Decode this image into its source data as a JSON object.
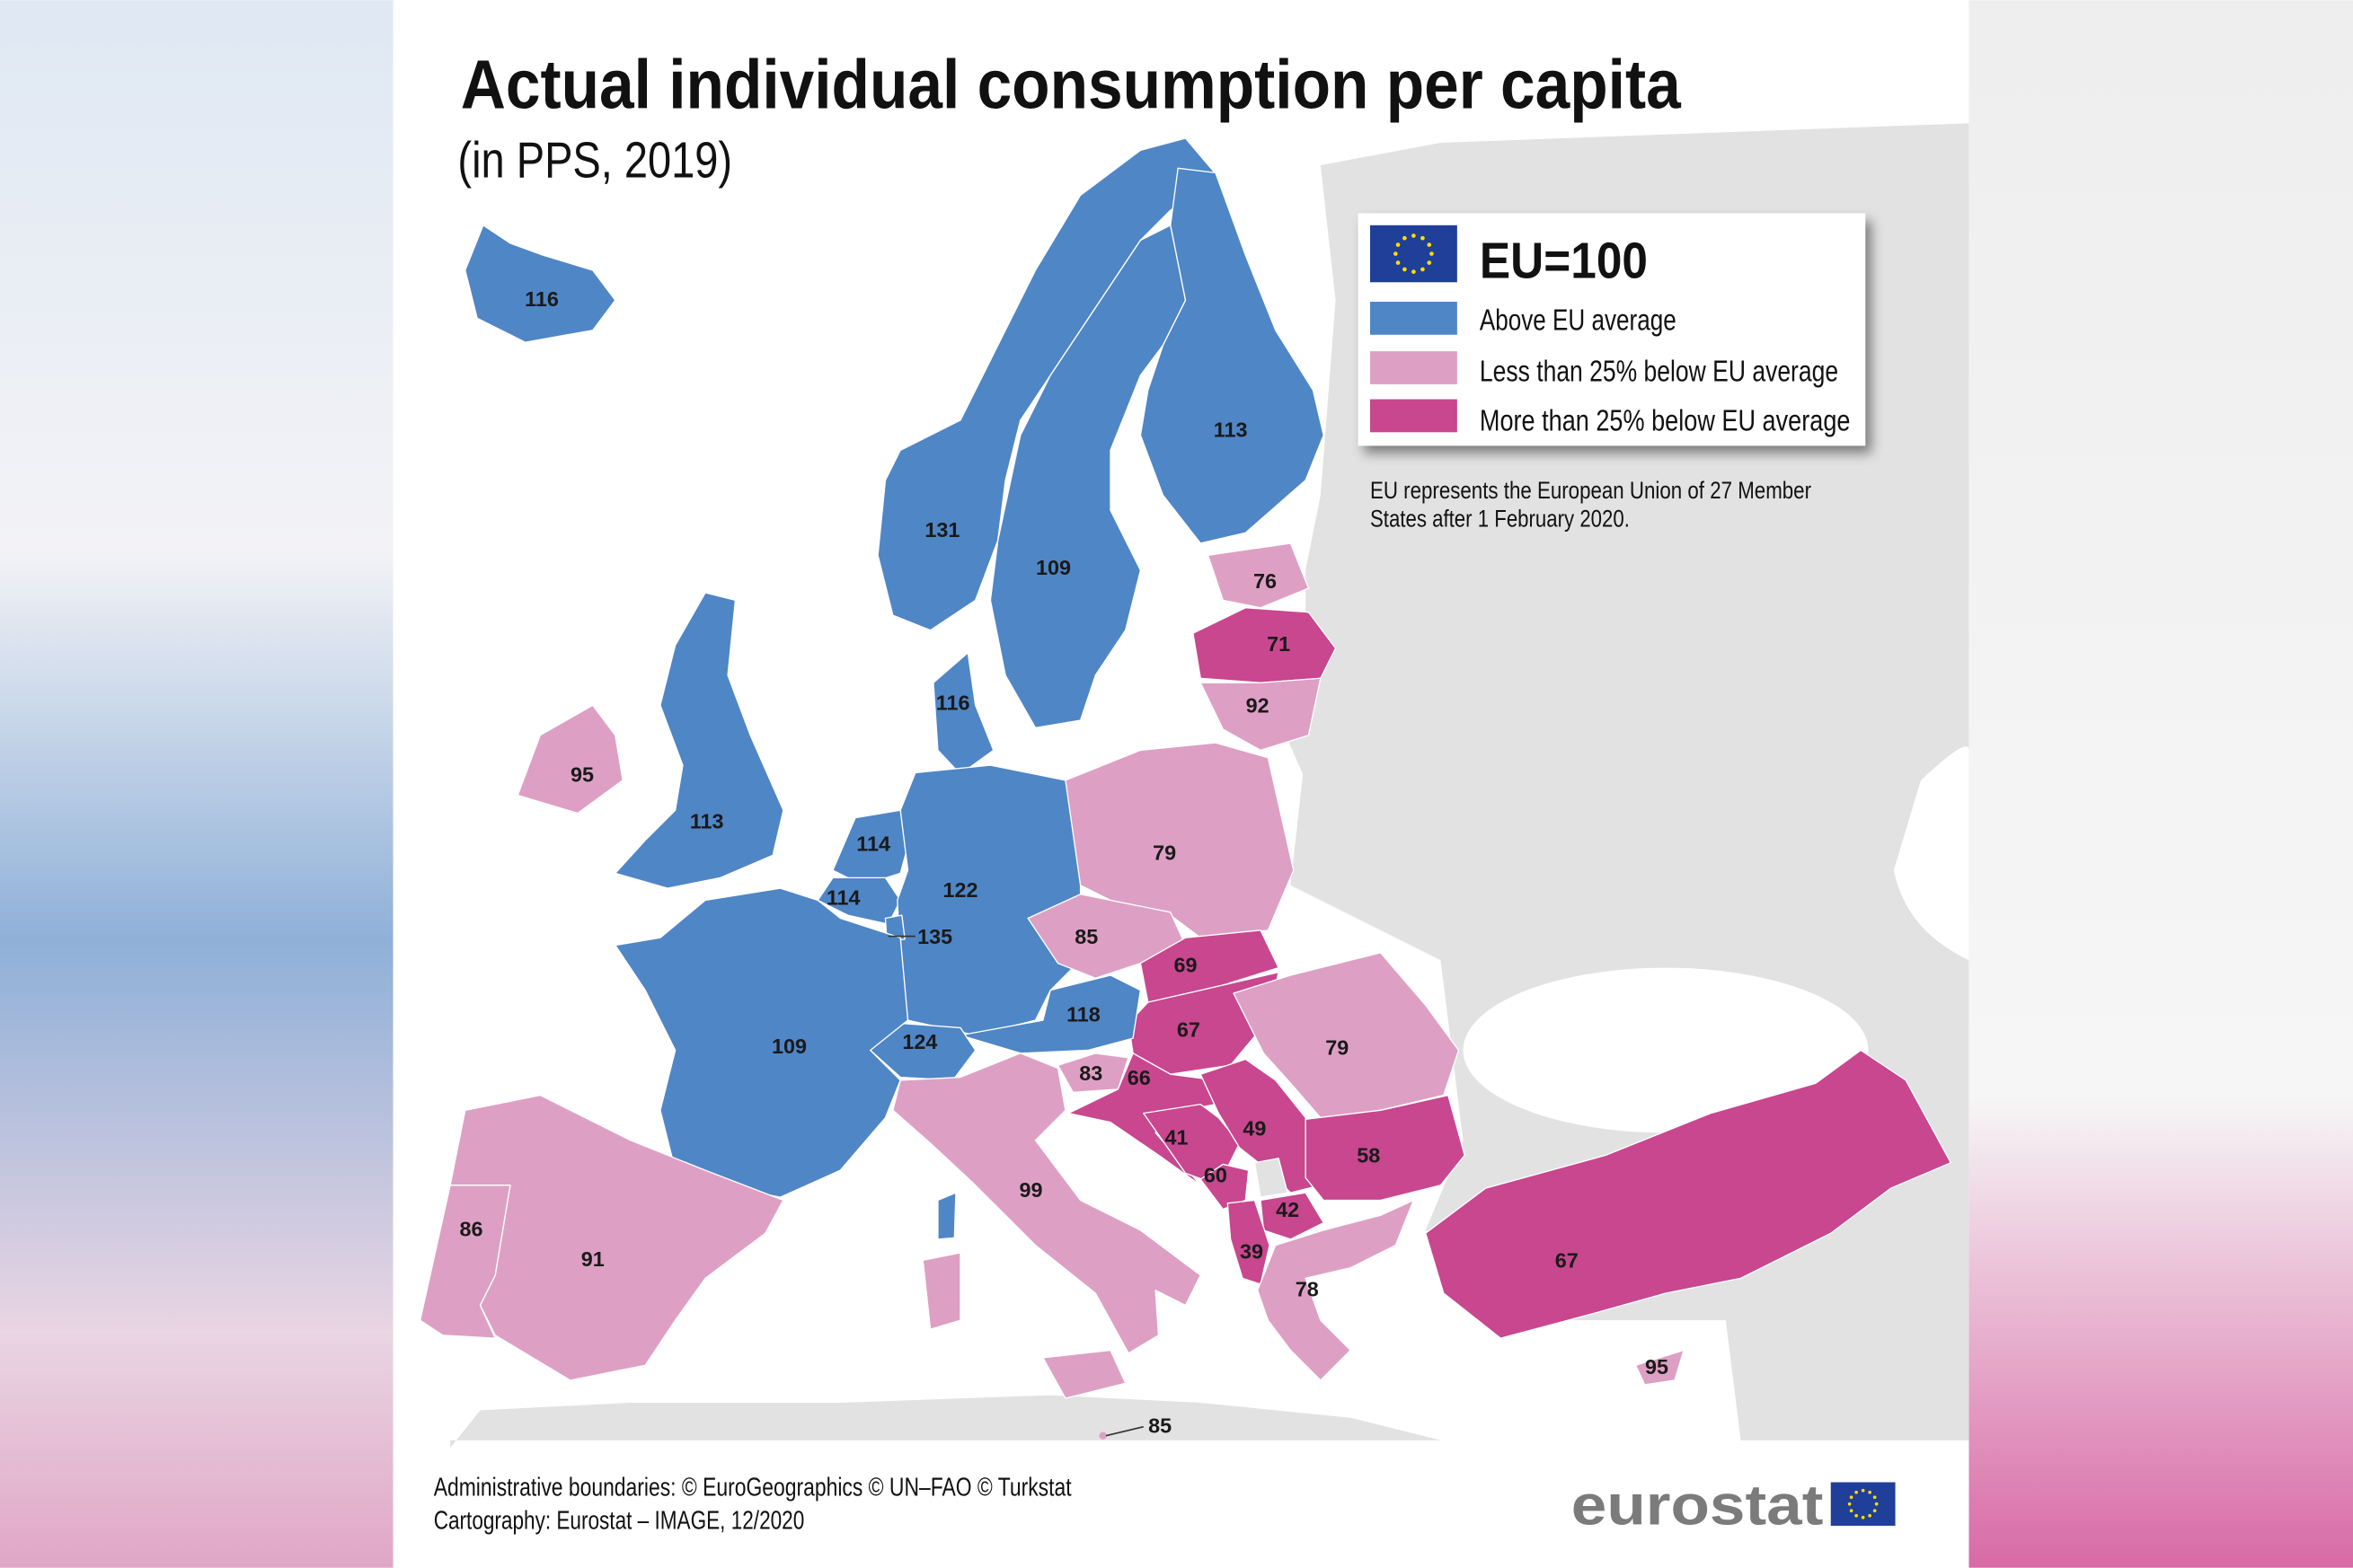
{
  "title": "Actual individual consumption per capita",
  "subtitle": "(in PPS, 2019)",
  "legend": {
    "heading": "EU=100",
    "items": [
      {
        "label": "Above EU average",
        "color": "#4f86c6",
        "category": "above"
      },
      {
        "label": "Less than 25% below EU average",
        "color": "#dda0c4",
        "category": "less25"
      },
      {
        "label": "More than 25% below EU average",
        "color": "#c8478f",
        "category": "more25"
      }
    ]
  },
  "note": [
    "EU represents the European Union of 27 Member",
    "States after 1 February 2020."
  ],
  "footer": {
    "line1": "Administrative boundaries: © EuroGeographics © UN–FAO © Turkstat",
    "line2": "Cartography: Eurostat – IMAGE, 12/2020"
  },
  "logo": "eurostat",
  "colors": {
    "no_data_land": "#e2e2e2",
    "sea": "#ffffff",
    "eu_flag": "#1f3f99",
    "flag_stars": "#ffdd00"
  },
  "map": {
    "regions": [
      {
        "value": "116",
        "category": "above"
      },
      {
        "value": "131",
        "category": "above"
      },
      {
        "value": "109",
        "category": "above"
      },
      {
        "value": "113",
        "category": "above"
      },
      {
        "value": "76",
        "category": "less25"
      },
      {
        "value": "71",
        "category": "more25"
      },
      {
        "value": "92",
        "category": "less25"
      },
      {
        "value": "116",
        "category": "above"
      },
      {
        "value": "95",
        "category": "less25"
      },
      {
        "value": "113",
        "category": "above"
      },
      {
        "value": "114",
        "category": "above"
      },
      {
        "value": "114",
        "category": "above"
      },
      {
        "value": "135",
        "category": "above"
      },
      {
        "value": "122",
        "category": "above"
      },
      {
        "value": "79",
        "category": "less25"
      },
      {
        "value": "85",
        "category": "less25"
      },
      {
        "value": "69",
        "category": "more25"
      },
      {
        "value": "67",
        "category": "more25"
      },
      {
        "value": "118",
        "category": "above"
      },
      {
        "value": "124",
        "category": "above"
      },
      {
        "value": "109",
        "category": "above"
      },
      {
        "value": "83",
        "category": "less25"
      },
      {
        "value": "66",
        "category": "more25"
      },
      {
        "value": "41",
        "category": "more25"
      },
      {
        "value": "49",
        "category": "more25"
      },
      {
        "value": "60",
        "category": "more25"
      },
      {
        "value": "42",
        "category": "more25"
      },
      {
        "value": "39",
        "category": "more25"
      },
      {
        "value": "79",
        "category": "less25"
      },
      {
        "value": "58",
        "category": "more25"
      },
      {
        "value": "78",
        "category": "less25"
      },
      {
        "value": "67",
        "category": "more25"
      },
      {
        "value": "95",
        "category": "less25"
      },
      {
        "value": "99",
        "category": "less25"
      },
      {
        "value": "85",
        "category": "less25"
      },
      {
        "value": "91",
        "category": "less25"
      },
      {
        "value": "86",
        "category": "less25"
      }
    ]
  }
}
